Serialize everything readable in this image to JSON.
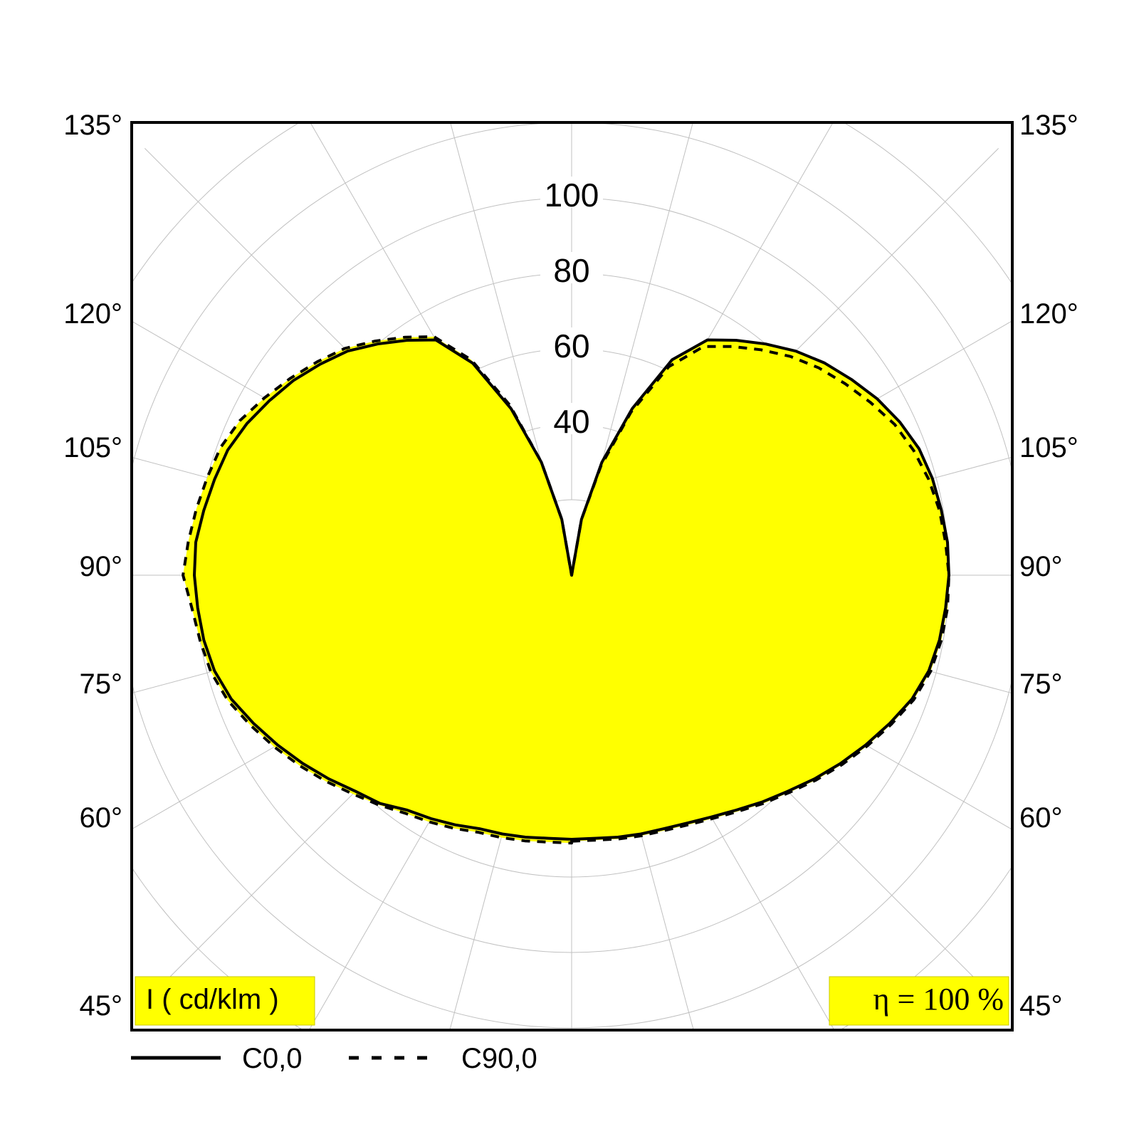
{
  "chart_data": {
    "type": "polar",
    "unit_label": "I ( cd/klm )",
    "efficiency_label": "η = 100 %",
    "radial_ticks": [
      "40",
      "60",
      "80",
      "100"
    ],
    "radial_tick_values": [
      40,
      60,
      80,
      100
    ],
    "rmax": 120,
    "angle_labels_left": [
      "135°",
      "120°",
      "105°",
      "90°",
      "75°",
      "60°",
      "45°"
    ],
    "angle_labels_right": [
      "135°",
      "120°",
      "105°",
      "90°",
      "75°",
      "60°",
      "45°"
    ],
    "fill_color": "#ffff00",
    "line_color": "#000000",
    "series": [
      {
        "name": "C0,0",
        "style": "solid",
        "gamma": [
          0,
          5,
          10,
          15,
          20,
          25,
          30,
          35,
          40,
          45,
          50,
          55,
          60,
          65,
          70,
          75,
          80,
          85,
          90,
          95,
          100,
          105,
          110,
          115,
          120,
          125,
          130,
          135,
          140,
          145,
          150,
          155,
          160,
          165,
          170,
          175,
          180
        ],
        "left": [
          70,
          70,
          70.5,
          71,
          71.5,
          73,
          74.5,
          76,
          79,
          81,
          84,
          87,
          90,
          93,
          96,
          98,
          99,
          99.5,
          100,
          100,
          99,
          98,
          97,
          95,
          92.5,
          90,
          87,
          84,
          80,
          76,
          72,
          62,
          47,
          31,
          15,
          0,
          0
        ],
        "right": [
          70,
          70,
          70.5,
          71,
          71.5,
          72.5,
          74,
          76,
          78.5,
          81,
          84,
          87,
          90,
          93,
          96,
          98,
          99,
          99.5,
          100,
          100,
          99.5,
          99,
          98,
          96,
          93.5,
          90.5,
          87.5,
          84,
          80,
          76,
          72,
          63,
          47,
          31,
          15,
          0,
          0
        ]
      },
      {
        "name": "C90,0",
        "style": "dashed",
        "gamma": [
          0,
          5,
          10,
          15,
          20,
          25,
          30,
          35,
          40,
          45,
          50,
          55,
          60,
          65,
          70,
          75,
          80,
          85,
          90,
          95,
          100,
          105,
          110,
          115,
          120,
          125,
          130,
          135,
          140,
          145,
          150,
          155,
          160,
          165,
          170,
          175,
          180
        ],
        "left": [
          71,
          71,
          71.5,
          72,
          72.5,
          74,
          75.5,
          77,
          79.5,
          82,
          85,
          88,
          91,
          94,
          97,
          99,
          100,
          101,
          103,
          102,
          101,
          100,
          99,
          97,
          94,
          91,
          88,
          85,
          81,
          77,
          73,
          63,
          48,
          31,
          15,
          0,
          0
        ],
        "right": [
          70.5,
          70.5,
          71,
          71.5,
          72,
          73,
          74.5,
          76.5,
          79,
          81.5,
          84.5,
          87.5,
          90.5,
          93.5,
          96.5,
          98.5,
          99.5,
          100,
          100,
          99.5,
          99,
          98,
          96.5,
          94.5,
          91.5,
          88.5,
          85.5,
          82,
          78,
          74,
          70,
          61,
          46,
          30,
          15,
          0,
          0
        ]
      }
    ]
  }
}
